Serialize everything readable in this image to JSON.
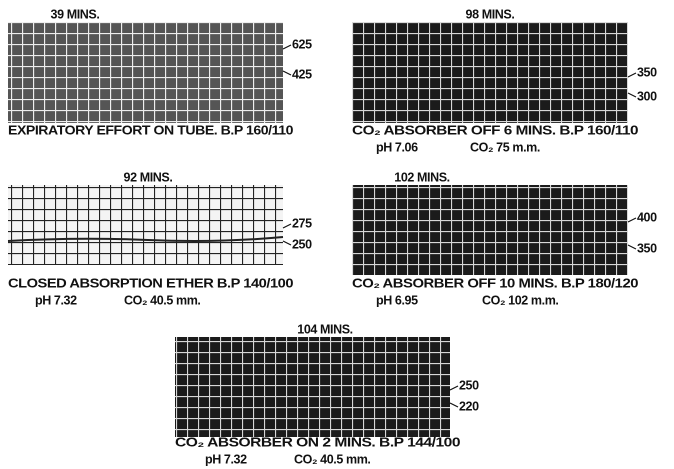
{
  "panels": [
    {
      "title": "39 MINS.",
      "labels": [
        "625",
        "425"
      ],
      "caption": "EXPIRATORY EFFORT ON TUBE. B.P 160/110"
    },
    {
      "title": "98 MINS.",
      "labels": [
        "350",
        "300"
      ],
      "caption": "CO₂ ABSORBER OFF 6 MINS. B.P 160/110",
      "ph": "pH 7.06",
      "co2": "CO₂ 75 m.m."
    },
    {
      "title": "92 MINS.",
      "labels": [
        "275",
        "250"
      ],
      "caption": "CLOSED ABSORPTION ETHER B.P 140/100",
      "ph": "pH 7.32",
      "co2": "CO₂ 40.5 mm."
    },
    {
      "title": "102 MINS.",
      "labels": [
        "400",
        "350"
      ],
      "caption": "CO₂ ABSORBER OFF 10 MINS. B.P 180/120",
      "ph": "pH 6.95",
      "co2": "CO₂ 102 m.m."
    },
    {
      "title": "104 MINS.",
      "labels": [
        "250",
        "220"
      ],
      "caption": "CO₂ ABSORBER ON 2 MINS. B.P 144/100",
      "ph": "pH 7.32",
      "co2": "CO₂ 40.5 mm."
    }
  ]
}
